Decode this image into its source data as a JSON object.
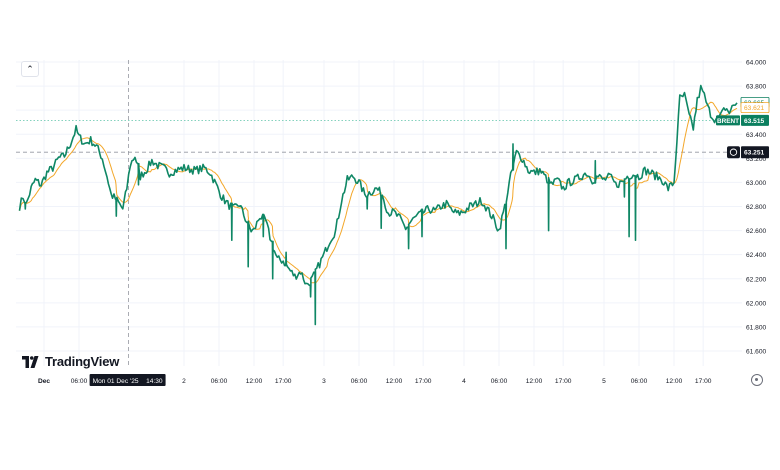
{
  "brand": {
    "name": "TradingView"
  },
  "colors": {
    "line": "#0f8765",
    "ma": "#f3a72a",
    "label_teal": "#0b7f5f",
    "dark_label": "#131722",
    "axis_text": "#131722",
    "dashed": "#9598a1",
    "hline": "#5cc3a8"
  },
  "icons": {
    "collapse": "chevron-up-icon",
    "settings": "gear-icon",
    "crosshair": "crosshair-icon"
  },
  "chart_data": {
    "type": "line",
    "series": [
      {
        "name": "BRENT"
      }
    ],
    "ylim": [
      61.5,
      64.0
    ],
    "y_ticks": [
      "64.000",
      "63.800",
      "63.600",
      "63.400",
      "63.200",
      "63.000",
      "62.800",
      "62.600",
      "62.400",
      "62.200",
      "62.000",
      "61.800",
      "61.600"
    ],
    "x_ticks": [
      "Dec",
      "06:00",
      "2",
      "06:00",
      "12:00",
      "17:00",
      "3",
      "06:00",
      "12:00",
      "17:00",
      "4",
      "06:00",
      "12:00",
      "17:00",
      "5",
      "06:00",
      "12:00",
      "17:00"
    ],
    "time_hours": [
      0,
      6,
      24,
      30,
      36,
      41,
      48,
      54,
      60,
      65,
      72,
      78,
      84,
      89,
      96,
      102,
      108,
      113
    ],
    "x_range_hours": [
      -4.2,
      121
    ],
    "crosshair": {
      "time_label": "Mon 01 Dec '25",
      "time_label_right": "14:30",
      "hour": 14.5,
      "price_label": "63.251",
      "price": 63.251
    },
    "price_labels": [
      {
        "text": "63.665",
        "value": 63.665,
        "style": "outline-teal"
      },
      {
        "text": "63.621",
        "value": 63.621,
        "style": "outline-orange"
      },
      {
        "name": "BRENT",
        "text": "63.515",
        "value": 63.515,
        "style": "filled-teal"
      }
    ],
    "keypoints": [
      [
        -4.2,
        62.8
      ],
      [
        -3.6,
        62.88
      ],
      [
        -3.0,
        62.82
      ],
      [
        -2.2,
        62.95
      ],
      [
        -1.5,
        63.02
      ],
      [
        -0.5,
        62.98
      ],
      [
        0.5,
        63.08
      ],
      [
        1.5,
        63.12
      ],
      [
        2.5,
        63.2
      ],
      [
        3.5,
        63.22
      ],
      [
        4.5,
        63.32
      ],
      [
        5.5,
        63.44
      ],
      [
        6.0,
        63.38
      ],
      [
        7.0,
        63.32
      ],
      [
        8.0,
        63.35
      ],
      [
        9.0,
        63.3
      ],
      [
        10.0,
        63.2
      ],
      [
        10.8,
        63.05
      ],
      [
        11.5,
        62.9
      ],
      [
        12.5,
        62.85
      ],
      [
        13.5,
        62.78
      ],
      [
        14.2,
        62.95
      ],
      [
        14.8,
        63.15
      ],
      [
        15.6,
        63.22
      ],
      [
        16.5,
        63.05
      ],
      [
        17.5,
        63.1
      ],
      [
        18.5,
        63.18
      ],
      [
        19.5,
        63.14
      ],
      [
        20.5,
        63.12
      ],
      [
        21.5,
        63.08
      ],
      [
        22.5,
        63.1
      ],
      [
        24,
        63.12
      ],
      [
        26,
        63.1
      ],
      [
        27.5,
        63.12
      ],
      [
        28.5,
        63.08
      ],
      [
        29.5,
        62.98
      ],
      [
        30.5,
        62.88
      ],
      [
        31.5,
        62.82
      ],
      [
        32.5,
        62.78
      ],
      [
        33.5,
        62.82
      ],
      [
        34.5,
        62.7
      ],
      [
        35.5,
        62.6
      ],
      [
        36.0,
        62.6
      ],
      [
        37.0,
        62.72
      ],
      [
        38.0,
        62.68
      ],
      [
        39.0,
        62.5
      ],
      [
        40.0,
        62.36
      ],
      [
        41.0,
        62.35
      ],
      [
        42.0,
        62.28
      ],
      [
        43.0,
        62.22
      ],
      [
        44.0,
        62.26
      ],
      [
        45.0,
        62.15
      ],
      [
        46.0,
        62.2
      ],
      [
        47.0,
        62.3
      ],
      [
        48.0,
        62.4
      ],
      [
        49.0,
        62.52
      ],
      [
        50.0,
        62.6
      ],
      [
        51.0,
        62.85
      ],
      [
        52.0,
        63.02
      ],
      [
        53.0,
        63.05
      ],
      [
        54.0,
        63.0
      ],
      [
        55.0,
        62.9
      ],
      [
        56.0,
        62.92
      ],
      [
        57.0,
        62.95
      ],
      [
        58.0,
        62.9
      ],
      [
        59.0,
        62.75
      ],
      [
        60.0,
        62.75
      ],
      [
        61.0,
        62.7
      ],
      [
        62.0,
        62.62
      ],
      [
        63.0,
        62.68
      ],
      [
        64.0,
        62.72
      ],
      [
        65.0,
        62.75
      ],
      [
        66.0,
        62.78
      ],
      [
        67.0,
        62.76
      ],
      [
        68.0,
        62.8
      ],
      [
        69.0,
        62.82
      ],
      [
        70.0,
        62.76
      ],
      [
        71.0,
        62.74
      ],
      [
        72.0,
        62.76
      ],
      [
        73.0,
        62.8
      ],
      [
        74.0,
        62.82
      ],
      [
        75.0,
        62.85
      ],
      [
        76.0,
        62.78
      ],
      [
        77.0,
        62.7
      ],
      [
        78.0,
        62.6
      ],
      [
        79.0,
        62.8
      ],
      [
        80.0,
        63.05
      ],
      [
        81.0,
        63.25
      ],
      [
        82.0,
        63.2
      ],
      [
        83.0,
        63.1
      ],
      [
        84.0,
        63.08
      ],
      [
        85.0,
        63.1
      ],
      [
        86.0,
        63.04
      ],
      [
        87.0,
        62.98
      ],
      [
        88.0,
        63.02
      ],
      [
        89.0,
        62.95
      ],
      [
        90.0,
        63.0
      ],
      [
        91.0,
        63.02
      ],
      [
        92.0,
        63.05
      ],
      [
        93.0,
        63.08
      ],
      [
        94.0,
        63.02
      ],
      [
        95.0,
        63.05
      ],
      [
        96.0,
        63.02
      ],
      [
        97.0,
        63.05
      ],
      [
        98.0,
        62.98
      ],
      [
        99.0,
        63.0
      ],
      [
        100.0,
        63.05
      ],
      [
        101.0,
        63.07
      ],
      [
        102.0,
        63.05
      ],
      [
        103.0,
        63.1
      ],
      [
        104.0,
        63.08
      ],
      [
        105.0,
        63.05
      ],
      [
        106.0,
        63.02
      ],
      [
        107.0,
        62.95
      ],
      [
        108.0,
        63.0
      ],
      [
        108.5,
        63.35
      ],
      [
        109.0,
        63.7
      ],
      [
        109.8,
        63.72
      ],
      [
        110.6,
        63.55
      ],
      [
        111.3,
        63.45
      ],
      [
        112.0,
        63.68
      ],
      [
        112.6,
        63.78
      ],
      [
        113.2,
        63.72
      ],
      [
        113.8,
        63.62
      ],
      [
        114.5,
        63.55
      ],
      [
        115.2,
        63.52
      ],
      [
        116.0,
        63.55
      ],
      [
        116.8,
        63.62
      ],
      [
        117.5,
        63.58
      ],
      [
        118.2,
        63.64
      ],
      [
        118.8,
        63.66
      ]
    ],
    "spikes": [
      [
        -3.2,
        62.78
      ],
      [
        12.4,
        62.72
      ],
      [
        16.2,
        62.98
      ],
      [
        32.2,
        62.52
      ],
      [
        35.0,
        62.3
      ],
      [
        37.6,
        62.55
      ],
      [
        39.2,
        62.2
      ],
      [
        41.5,
        62.42
      ],
      [
        46.5,
        61.82
      ],
      [
        45.7,
        62.05
      ],
      [
        55.4,
        62.78
      ],
      [
        57.8,
        62.62
      ],
      [
        62.5,
        62.45
      ],
      [
        64.8,
        62.55
      ],
      [
        79.2,
        62.45
      ],
      [
        86.5,
        62.6
      ],
      [
        99.5,
        62.88
      ],
      [
        100.3,
        62.55
      ],
      [
        101.4,
        62.52
      ],
      [
        94.5,
        63.18
      ],
      [
        80.4,
        63.32
      ]
    ]
  }
}
